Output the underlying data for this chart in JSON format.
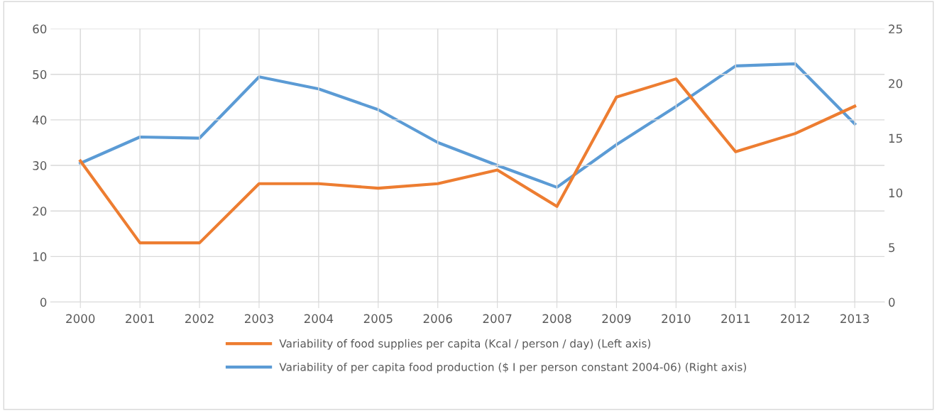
{
  "chart_data": {
    "type": "line",
    "categories": [
      "2000",
      "2001",
      "2002",
      "2003",
      "2004",
      "2005",
      "2006",
      "2007",
      "2008",
      "2009",
      "2010",
      "2011",
      "2012",
      "2013"
    ],
    "series": [
      {
        "name": "Variability of food supplies per capita (Kcal / person / day) (Left axis)",
        "color": "#ed7d31",
        "values": [
          31,
          13,
          13,
          26,
          26,
          25,
          26,
          29,
          21,
          45,
          49,
          33,
          37,
          43
        ]
      },
      {
        "name": "Variability of per capita food production ($ I per person constant 2004-06) (Right axis)",
        "color": "#5b9bd5",
        "axis": "y2",
        "values": [
          12.7,
          15.1,
          15.0,
          20.6,
          19.5,
          17.6,
          14.6,
          12.5,
          10.5,
          14.4,
          17.9,
          21.6,
          21.8,
          16.3
        ]
      }
    ],
    "ylim": [
      0,
      60
    ],
    "yticks": [
      0,
      10,
      20,
      30,
      40,
      50,
      60
    ],
    "y2lim": [
      0,
      25
    ],
    "y2ticks": [
      0,
      5,
      10,
      15,
      20,
      25
    ],
    "grid": true,
    "legend": "bottom",
    "marker": "none",
    "line_style": "solid"
  }
}
